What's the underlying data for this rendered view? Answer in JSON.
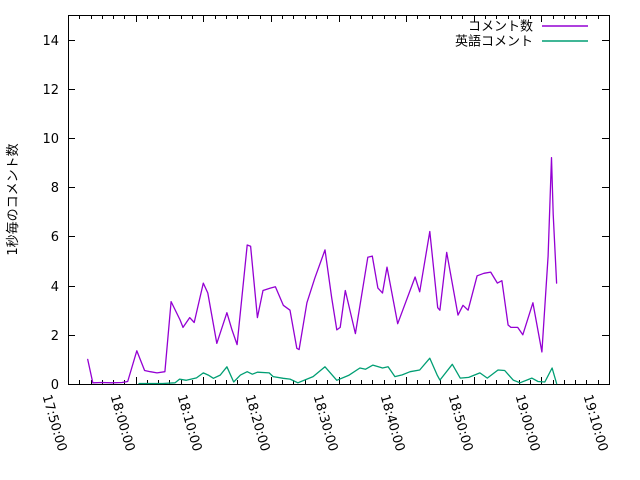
{
  "chart_data": {
    "type": "line",
    "title": "",
    "xlabel": "",
    "ylabel": "1秒毎のコメント数",
    "xlim": [
      "17:50:00",
      "19:10:00"
    ],
    "ylim": [
      0,
      15
    ],
    "y_ticks": [
      0,
      2,
      4,
      6,
      8,
      10,
      12,
      14
    ],
    "x_tick_labels": [
      "17:50:00",
      "18:00:00",
      "18:10:00",
      "18:20:00",
      "18:30:00",
      "18:40:00",
      "18:50:00",
      "19:00:00",
      "19:10:00"
    ],
    "minor_xtick_interval_seconds": 100,
    "grid": false,
    "legend_position": "top-right-inside",
    "background_color": "#ffffff",
    "axis_color": "#000000",
    "text_color": "#000000",
    "series": [
      {
        "name": "コメント数",
        "color": "#9400d3",
        "points": [
          [
            "17:52:55",
            1.0
          ],
          [
            "17:53:40",
            0.05
          ],
          [
            "17:55:00",
            0.06
          ],
          [
            "17:56:30",
            0.05
          ],
          [
            "17:58:00",
            0.06
          ],
          [
            "17:58:50",
            0.1
          ],
          [
            "18:00:10",
            1.35
          ],
          [
            "18:01:20",
            0.55
          ],
          [
            "18:02:10",
            0.5
          ],
          [
            "18:03:10",
            0.45
          ],
          [
            "18:04:20",
            0.5
          ],
          [
            "18:05:15",
            3.35
          ],
          [
            "18:06:35",
            2.6
          ],
          [
            "18:07:00",
            2.3
          ],
          [
            "18:08:00",
            2.7
          ],
          [
            "18:08:40",
            2.5
          ],
          [
            "18:10:00",
            4.1
          ],
          [
            "18:10:40",
            3.7
          ],
          [
            "18:12:00",
            1.65
          ],
          [
            "18:13:30",
            2.9
          ],
          [
            "18:14:15",
            2.2
          ],
          [
            "18:15:00",
            1.6
          ],
          [
            "18:16:30",
            5.65
          ],
          [
            "18:17:00",
            5.6
          ],
          [
            "18:18:00",
            2.7
          ],
          [
            "18:18:50",
            3.8
          ],
          [
            "18:19:55",
            3.9
          ],
          [
            "18:20:40",
            3.95
          ],
          [
            "18:21:50",
            3.2
          ],
          [
            "18:22:50",
            3.0
          ],
          [
            "18:23:50",
            1.45
          ],
          [
            "18:24:10",
            1.4
          ],
          [
            "18:25:20",
            3.3
          ],
          [
            "18:26:30",
            4.3
          ],
          [
            "18:28:00",
            5.45
          ],
          [
            "18:29:00",
            3.5
          ],
          [
            "18:29:45",
            2.2
          ],
          [
            "18:30:15",
            2.3
          ],
          [
            "18:31:00",
            3.8
          ],
          [
            "18:32:30",
            2.05
          ],
          [
            "18:34:20",
            5.15
          ],
          [
            "18:35:00",
            5.2
          ],
          [
            "18:35:50",
            3.9
          ],
          [
            "18:36:30",
            3.7
          ],
          [
            "18:37:10",
            4.75
          ],
          [
            "18:38:45",
            2.45
          ],
          [
            "18:41:20",
            4.35
          ],
          [
            "18:42:00",
            3.75
          ],
          [
            "18:43:30",
            6.2
          ],
          [
            "18:44:40",
            3.1
          ],
          [
            "18:45:00",
            3.0
          ],
          [
            "18:46:00",
            5.35
          ],
          [
            "18:47:40",
            2.8
          ],
          [
            "18:48:25",
            3.2
          ],
          [
            "18:49:10",
            3.0
          ],
          [
            "18:50:30",
            4.4
          ],
          [
            "18:51:30",
            4.5
          ],
          [
            "18:52:30",
            4.55
          ],
          [
            "18:53:30",
            4.1
          ],
          [
            "18:54:10",
            4.2
          ],
          [
            "18:55:05",
            2.4
          ],
          [
            "18:55:30",
            2.3
          ],
          [
            "18:56:30",
            2.3
          ],
          [
            "18:57:15",
            2.0
          ],
          [
            "18:58:45",
            3.3
          ],
          [
            "19:00:05",
            1.3
          ],
          [
            "19:01:00",
            5.2
          ],
          [
            "19:01:30",
            9.2
          ],
          [
            "19:01:45",
            6.9
          ],
          [
            "19:02:15",
            4.1
          ]
        ]
      },
      {
        "name": "英語コメント",
        "color": "#009e73",
        "points": [
          [
            "18:00:30",
            0.02
          ],
          [
            "18:02:00",
            0.02
          ],
          [
            "18:04:00",
            0.02
          ],
          [
            "18:05:50",
            0.05
          ],
          [
            "18:06:30",
            0.2
          ],
          [
            "18:07:30",
            0.15
          ],
          [
            "18:09:00",
            0.25
          ],
          [
            "18:10:00",
            0.45
          ],
          [
            "18:10:45",
            0.36
          ],
          [
            "18:11:30",
            0.23
          ],
          [
            "18:12:30",
            0.36
          ],
          [
            "18:13:30",
            0.7
          ],
          [
            "18:14:30",
            0.08
          ],
          [
            "18:15:30",
            0.36
          ],
          [
            "18:16:30",
            0.5
          ],
          [
            "18:17:15",
            0.4
          ],
          [
            "18:18:00",
            0.48
          ],
          [
            "18:19:45",
            0.45
          ],
          [
            "18:20:20",
            0.3
          ],
          [
            "18:21:50",
            0.23
          ],
          [
            "18:22:50",
            0.2
          ],
          [
            "18:24:00",
            0.05
          ],
          [
            "18:26:15",
            0.3
          ],
          [
            "18:28:00",
            0.7
          ],
          [
            "18:29:45",
            0.15
          ],
          [
            "18:31:30",
            0.35
          ],
          [
            "18:33:10",
            0.65
          ],
          [
            "18:34:00",
            0.6
          ],
          [
            "18:35:05",
            0.77
          ],
          [
            "18:36:30",
            0.65
          ],
          [
            "18:37:20",
            0.7
          ],
          [
            "18:38:20",
            0.3
          ],
          [
            "18:39:25",
            0.37
          ],
          [
            "18:40:35",
            0.5
          ],
          [
            "18:42:00",
            0.57
          ],
          [
            "18:43:30",
            1.05
          ],
          [
            "18:44:35",
            0.37
          ],
          [
            "18:45:00",
            0.16
          ],
          [
            "18:46:50",
            0.8
          ],
          [
            "18:48:00",
            0.24
          ],
          [
            "18:49:15",
            0.27
          ],
          [
            "18:50:55",
            0.45
          ],
          [
            "18:52:00",
            0.24
          ],
          [
            "18:53:35",
            0.57
          ],
          [
            "18:54:35",
            0.55
          ],
          [
            "18:55:50",
            0.16
          ],
          [
            "18:56:50",
            0.05
          ],
          [
            "18:58:35",
            0.24
          ],
          [
            "18:59:30",
            0.1
          ],
          [
            "19:00:30",
            0.08
          ],
          [
            "19:01:35",
            0.65
          ],
          [
            "19:02:15",
            0.02
          ]
        ]
      }
    ]
  }
}
